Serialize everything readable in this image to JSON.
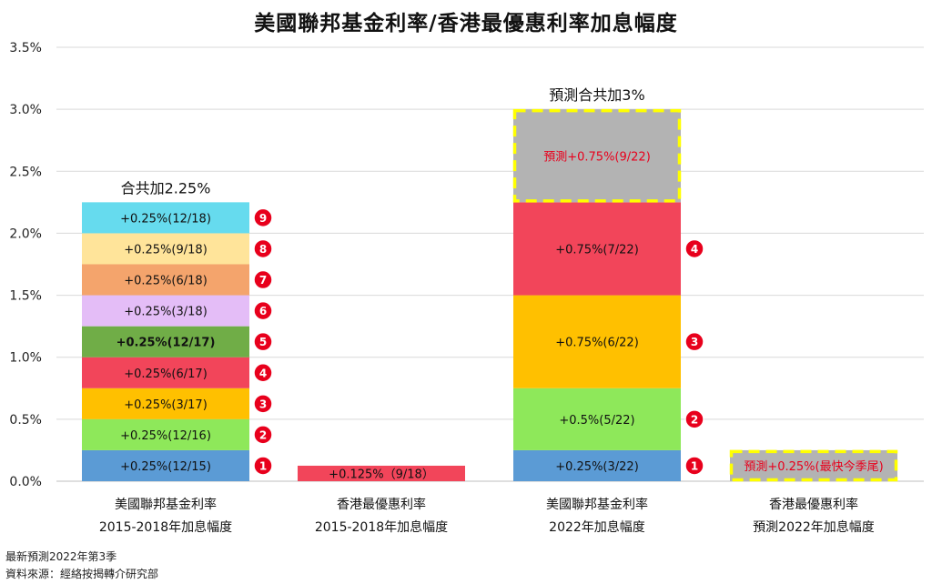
{
  "chart_data": {
    "type": "bar",
    "stacked": true,
    "title": "美國聯邦基金利率/香港最優惠利率加息幅度",
    "ylim": [
      0,
      3.5
    ],
    "yticks": [
      "0.0%",
      "0.5%",
      "1.0%",
      "1.5%",
      "2.0%",
      "2.5%",
      "3.0%",
      "3.5%"
    ],
    "grid": true,
    "categories": [
      {
        "line1": "美國聯邦基金利率",
        "line2": "2015-2018年加息幅度"
      },
      {
        "line1": "香港最優惠利率",
        "line2": "2015-2018年加息幅度"
      },
      {
        "line1": "美國聯邦基金利率",
        "line2": "2022年加息幅度"
      },
      {
        "line1": "香港最優惠利率",
        "line2": "預測2022年加息幅度"
      }
    ],
    "stacks": [
      {
        "total_label": "合共加2.25%",
        "segments": [
          {
            "value": 0.25,
            "label": "+0.25%(12/15)",
            "color": "#5b9bd5",
            "badge": "1"
          },
          {
            "value": 0.25,
            "label": "+0.25%(12/16)",
            "color": "#8ee85a",
            "badge": "2"
          },
          {
            "value": 0.25,
            "label": "+0.25%(3/17)",
            "color": "#ffc000",
            "badge": "3"
          },
          {
            "value": 0.25,
            "label": "+0.25%(6/17)",
            "color": "#f2455a",
            "badge": "4"
          },
          {
            "value": 0.25,
            "label": "+0.25%(12/17)",
            "color": "#70ad47",
            "badge": "5",
            "bold": true
          },
          {
            "value": 0.25,
            "label": "+0.25%(3/18)",
            "color": "#e4bdf7",
            "badge": "6"
          },
          {
            "value": 0.25,
            "label": "+0.25%(6/18)",
            "color": "#f4a46c",
            "badge": "7"
          },
          {
            "value": 0.25,
            "label": "+0.25%(9/18)",
            "color": "#ffe49a",
            "badge": "8"
          },
          {
            "value": 0.25,
            "label": "+0.25%(12/18)",
            "color": "#66dbee",
            "badge": "9"
          }
        ]
      },
      {
        "total_label": "",
        "segments": [
          {
            "value": 0.125,
            "label": "+0.125%（9/18）",
            "color": "#f2455a"
          }
        ]
      },
      {
        "total_label": "預測合共加3%",
        "segments": [
          {
            "value": 0.25,
            "label": "+0.25%(3/22)",
            "color": "#5b9bd5",
            "badge": "1"
          },
          {
            "value": 0.5,
            "label": "+0.5%(5/22)",
            "color": "#8ee85a",
            "badge": "2"
          },
          {
            "value": 0.75,
            "label": "+0.75%(6/22)",
            "color": "#ffc000",
            "badge": "3"
          },
          {
            "value": 0.75,
            "label": "+0.75%(7/22)",
            "color": "#f2455a",
            "badge": "4"
          },
          {
            "value": 0.75,
            "label": "預測+0.75%(9/22)",
            "color": "#b3b3b3",
            "forecast": true,
            "label_color": "#e8001c"
          }
        ]
      },
      {
        "total_label": "",
        "segments": [
          {
            "value": 0.25,
            "label": "預測+0.25%(最快今季尾)",
            "color": "#b3b3b3",
            "forecast": true,
            "label_color": "#e8001c"
          }
        ]
      }
    ]
  },
  "notes": {
    "line1": "最新預測2022年第3季",
    "line2": "資料來源：經絡按揭轉介研究部"
  },
  "colors": {
    "badge": "#e8001c",
    "forecast_border": "#ffff00",
    "grid": "#d9d9d9"
  }
}
